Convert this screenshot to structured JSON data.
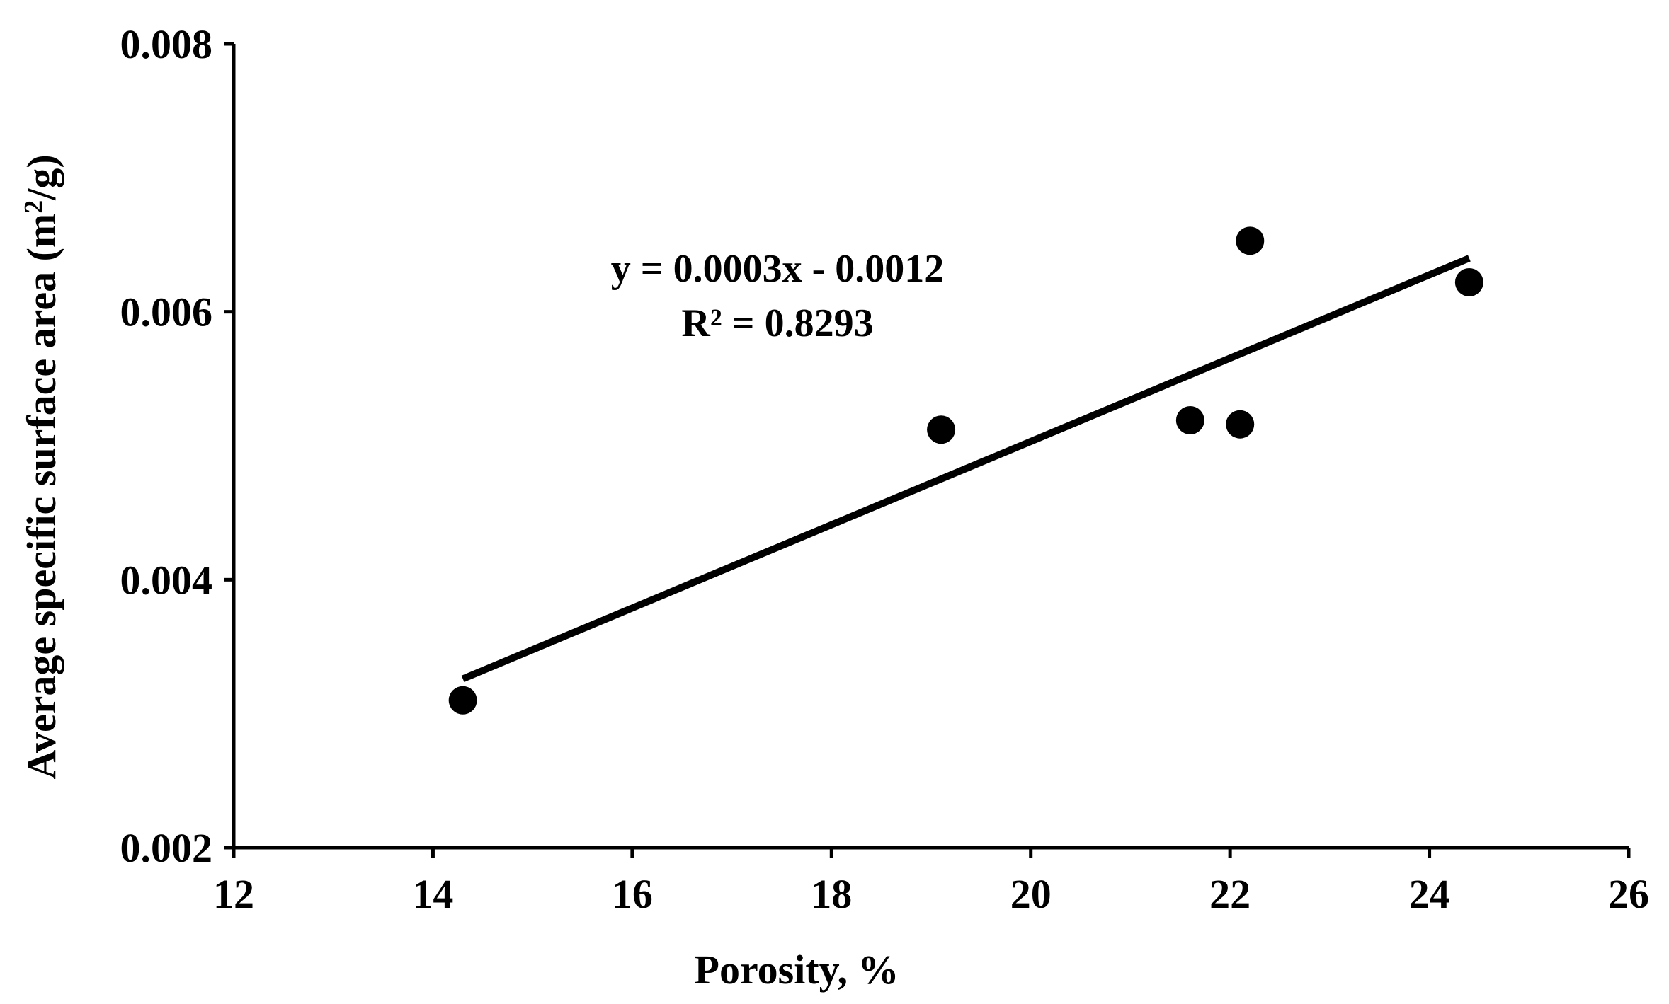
{
  "chart_data": {
    "type": "scatter",
    "title": "",
    "xlabel": "Porosity, %",
    "ylabel_main": "Average specific surface area (m",
    "ylabel_sup": "2",
    "ylabel_end": "/g)",
    "xlim": [
      12,
      26
    ],
    "ylim": [
      0.002,
      0.008
    ],
    "x_ticks": [
      "12",
      "14",
      "16",
      "18",
      "20",
      "22",
      "24",
      "26"
    ],
    "y_ticks": [
      "0.002",
      "0.004",
      "0.006",
      "0.008"
    ],
    "grid": false,
    "legend": "none",
    "series": [
      {
        "points": [
          {
            "x": 14.3,
            "y": 0.0031
          },
          {
            "x": 19.1,
            "y": 0.00512
          },
          {
            "x": 21.6,
            "y": 0.00519
          },
          {
            "x": 22.1,
            "y": 0.00516
          },
          {
            "x": 22.2,
            "y": 0.00653
          },
          {
            "x": 24.4,
            "y": 0.00622
          }
        ]
      }
    ],
    "trendline": {
      "type": "linear",
      "x_start": 14.3,
      "y_start": 0.00326,
      "x_end": 24.4,
      "y_end": 0.0064
    },
    "annotations": {
      "equation": "y = 0.0003x - 0.0012",
      "r_squared": "R² = 0.8293"
    },
    "colors": {
      "markers": "#000000",
      "trendline": "#000000",
      "axes": "#000000"
    }
  }
}
